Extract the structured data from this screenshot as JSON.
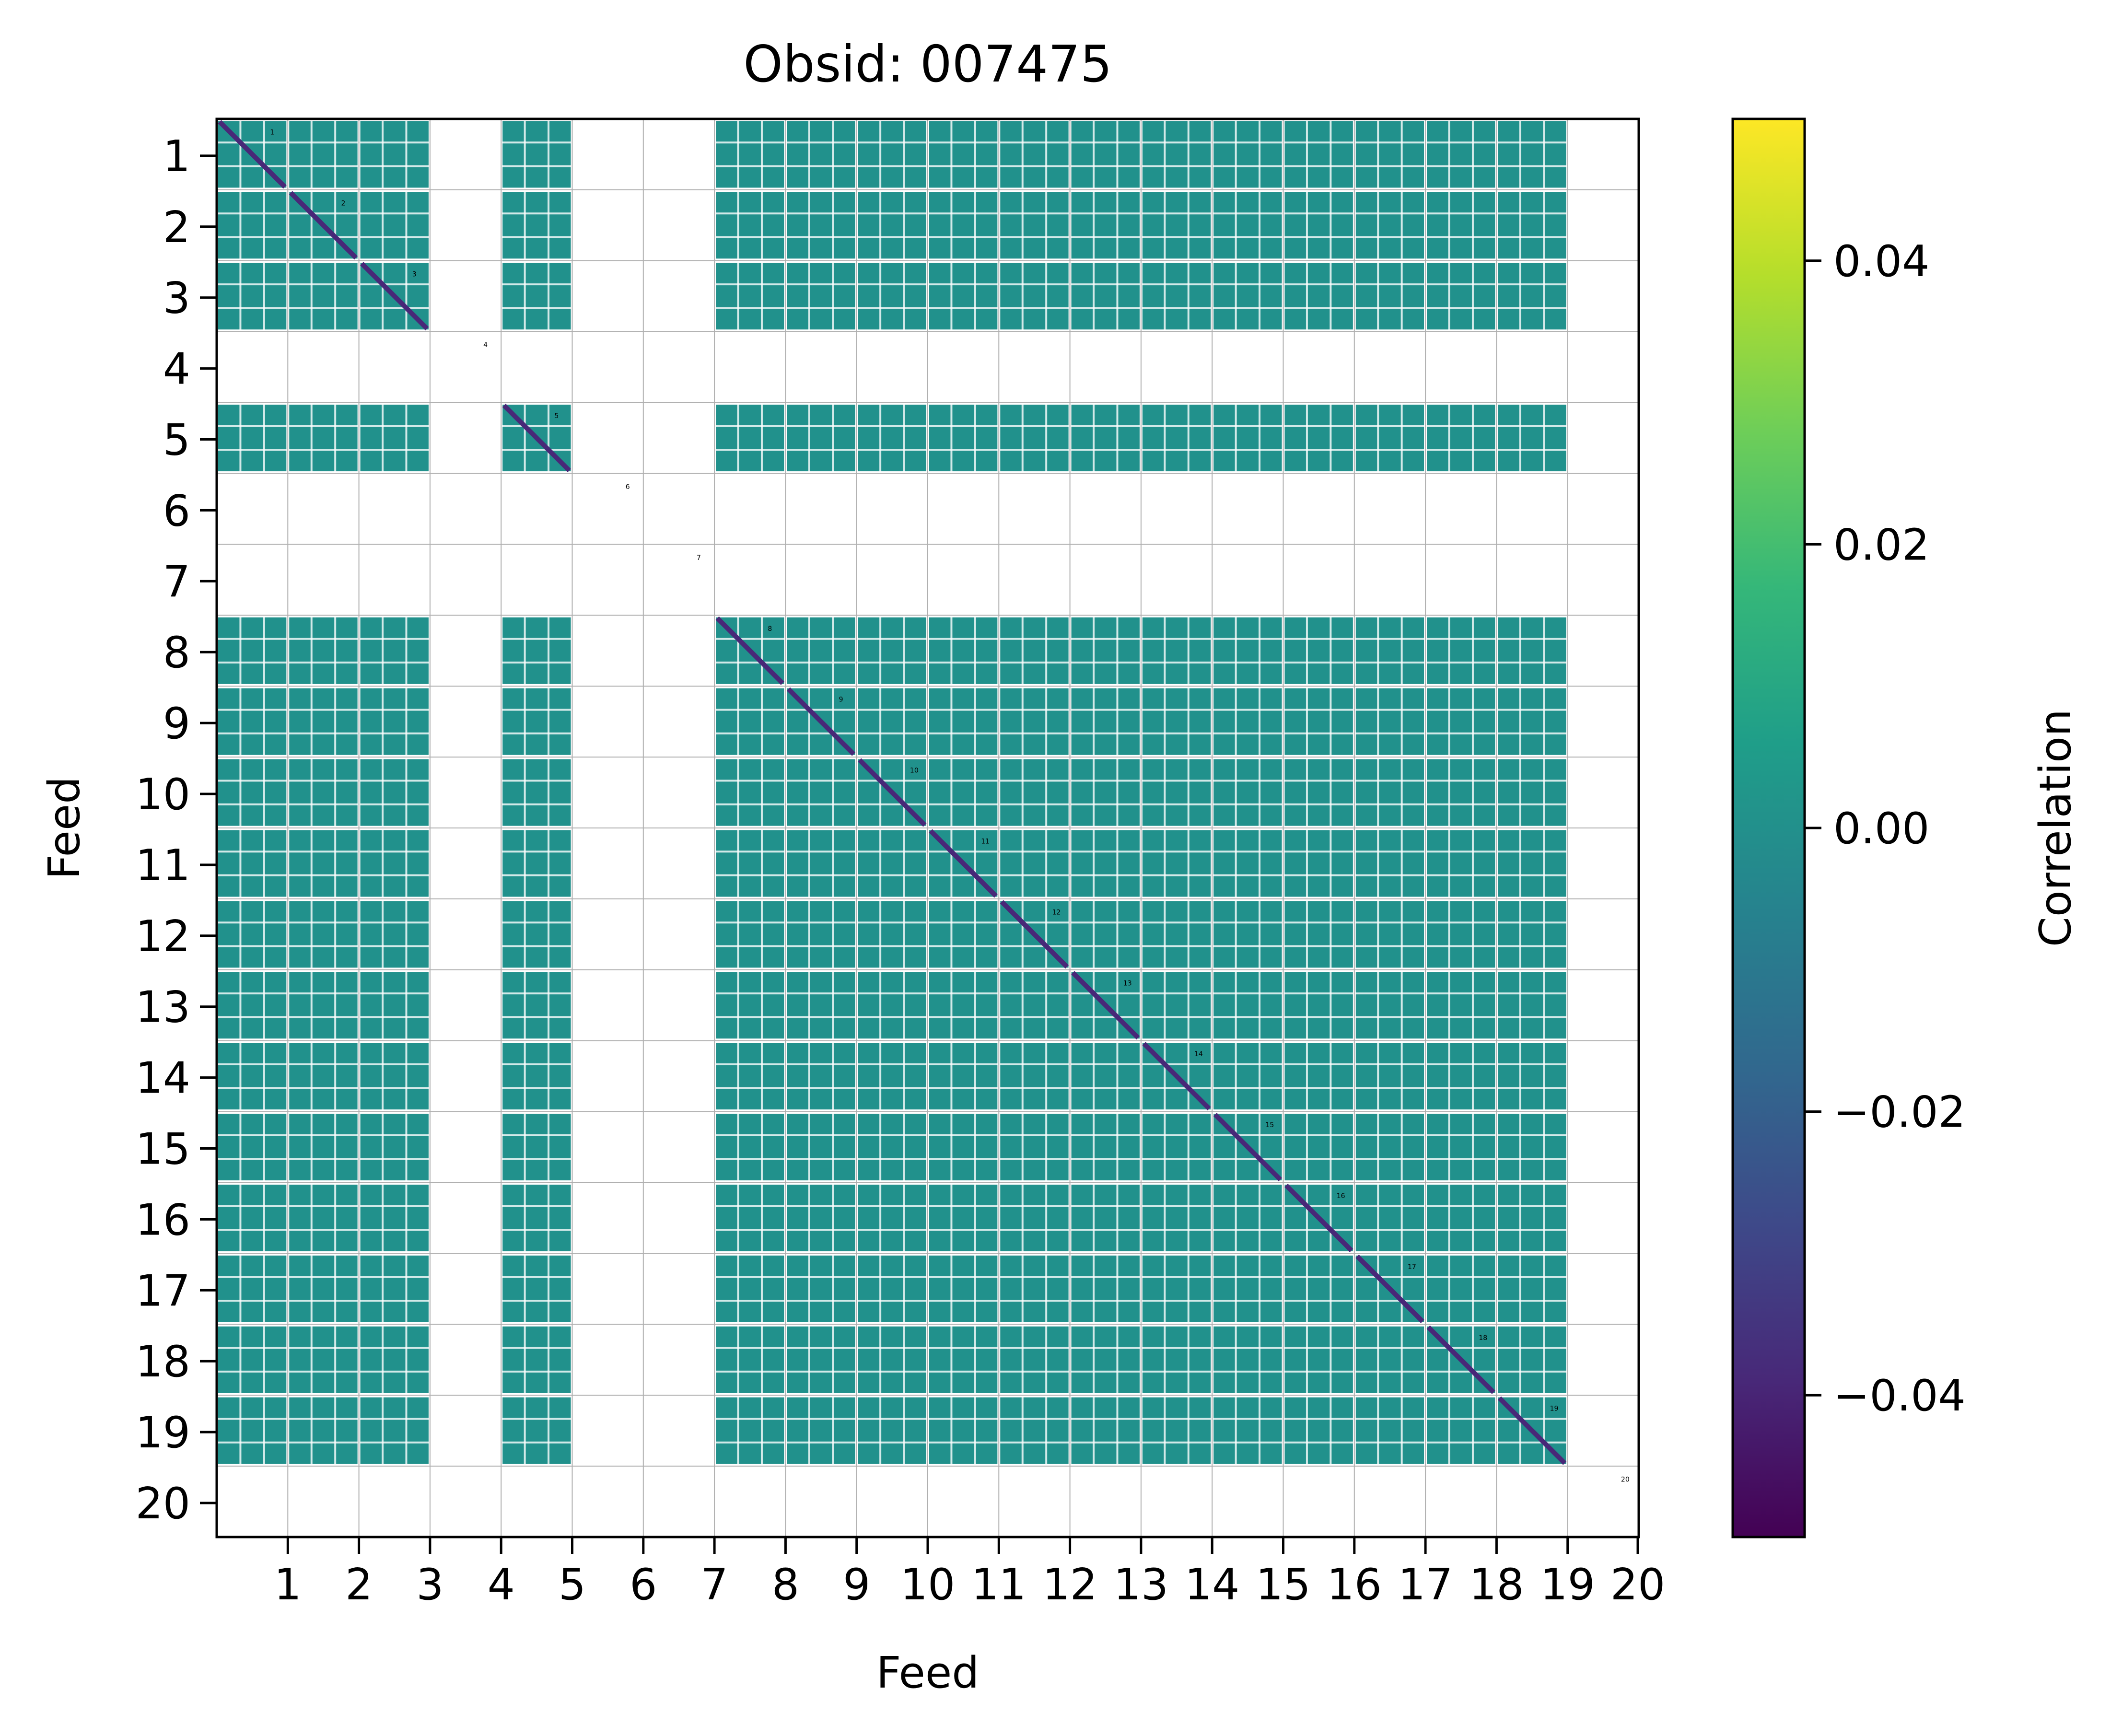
{
  "chart_data": {
    "type": "heatmap",
    "title": "Obsid: 007475",
    "xlabel": "Feed",
    "ylabel": "Feed",
    "feeds": [
      "1",
      "2",
      "3",
      "4",
      "5",
      "6",
      "7",
      "8",
      "9",
      "10",
      "11",
      "12",
      "13",
      "14",
      "15",
      "16",
      "17",
      "18",
      "19",
      "20"
    ],
    "x_tick_labels": [
      "1",
      "2",
      "3",
      "4",
      "5",
      "6",
      "7",
      "8",
      "9",
      "10",
      "11",
      "12",
      "13",
      "14",
      "15",
      "16",
      "17",
      "18",
      "19",
      "20"
    ],
    "y_tick_labels": [
      "1",
      "2",
      "3",
      "4",
      "5",
      "6",
      "7",
      "8",
      "9",
      "10",
      "11",
      "12",
      "13",
      "14",
      "15",
      "16",
      "17",
      "18",
      "19",
      "20"
    ],
    "colorbar": {
      "label": "Correlation",
      "range": [
        -0.05,
        0.05
      ],
      "ticks": [
        -0.04,
        -0.02,
        0.0,
        0.02,
        0.04
      ],
      "tick_labels": [
        "−0.04",
        "−0.02",
        "0.00",
        "0.02",
        "0.04"
      ],
      "colormap": "viridis",
      "stops": [
        "#440154",
        "#482878",
        "#3e4989",
        "#31688e",
        "#26828e",
        "#1f9e89",
        "#35b779",
        "#6ece58",
        "#b5de2b",
        "#fde725"
      ]
    },
    "cell_value": 0.0,
    "cell_color": "#21918c",
    "diagonal_color": "#482878",
    "active_feeds": [
      "1",
      "2",
      "3",
      "5",
      "8",
      "9",
      "10",
      "11",
      "12",
      "13",
      "14",
      "15",
      "16",
      "17",
      "18",
      "19"
    ],
    "inactive_feeds": [
      "4",
      "6",
      "7",
      "20"
    ],
    "grid": true
  }
}
